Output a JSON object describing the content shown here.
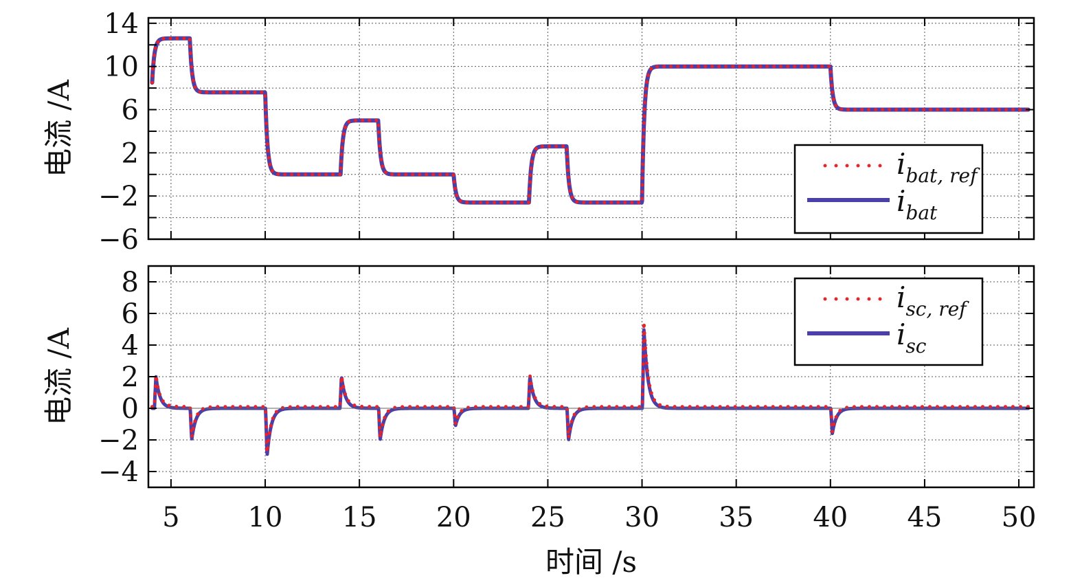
{
  "colors": {
    "reference": "#e8232a",
    "measured": "#4b3fa8",
    "grid": "#555555",
    "axes": "#000000"
  },
  "x_axis": {
    "label": "时间 /s",
    "range": [
      3.8,
      50.8
    ],
    "ticks": [
      5,
      10,
      15,
      20,
      25,
      30,
      35,
      40,
      45,
      50
    ],
    "tick_labels": [
      "5",
      "10",
      "15",
      "20",
      "25",
      "30",
      "35",
      "40",
      "45",
      "50"
    ]
  },
  "chart_data": [
    {
      "type": "line",
      "ylabel": "电流 /A",
      "ylim": [
        -6,
        14.5
      ],
      "yticks": [
        -6,
        -4,
        -2,
        0,
        2,
        4,
        6,
        8,
        10,
        12,
        14
      ],
      "ytick_labels": [
        "−6",
        "",
        "−2",
        "",
        "2",
        "",
        "6",
        "",
        "10",
        "",
        "14"
      ],
      "grid": true,
      "legend": "right",
      "legend_items": [
        {
          "main": "i",
          "sub": "bat, ref",
          "style": "dotted"
        },
        {
          "main": "i",
          "sub": "bat",
          "style": "solid"
        }
      ],
      "steps": {
        "t": [
          4.0,
          6.0,
          10.0,
          14.0,
          16.0,
          20.0,
          24.0,
          26.0,
          30.0,
          40.0,
          50.5
        ],
        "level": [
          12.6,
          7.6,
          0.0,
          5.0,
          0.0,
          -2.6,
          2.6,
          -2.6,
          10.0,
          6.0
        ],
        "start_value": 8.5
      },
      "series": [
        {
          "name": "ibat,ref",
          "style": "dotted"
        },
        {
          "name": "ibat",
          "style": "solid"
        }
      ]
    },
    {
      "type": "line",
      "ylabel": "电流 /A",
      "ylim": [
        -5,
        9
      ],
      "yticks": [
        -4,
        -2,
        0,
        2,
        4,
        6,
        8
      ],
      "ytick_labels": [
        "−4",
        "−2",
        "0",
        "2",
        "4",
        "6",
        "8"
      ],
      "grid": true,
      "legend": "top-right",
      "legend_items": [
        {
          "main": "i",
          "sub": "sc, ref",
          "style": "dotted"
        },
        {
          "main": "i",
          "sub": "sc",
          "style": "solid"
        }
      ],
      "range_t": [
        4.0,
        50.5
      ],
      "baseline": 0.0,
      "spikes": {
        "t": [
          4.2,
          6.1,
          10.1,
          14.05,
          16.1,
          20.1,
          24.05,
          26.1,
          30.1,
          40.1
        ],
        "peak": [
          2.0,
          -2.0,
          -3.0,
          2.0,
          -2.0,
          -1.1,
          2.0,
          -2.0,
          5.0,
          -1.6
        ],
        "ref_peak": [
          2.0,
          -2.0,
          -3.0,
          2.0,
          -2.0,
          -1.1,
          2.0,
          -2.0,
          5.4,
          -1.6
        ]
      },
      "series": [
        {
          "name": "isc,ref",
          "style": "dotted"
        },
        {
          "name": "isc",
          "style": "solid"
        }
      ]
    }
  ]
}
